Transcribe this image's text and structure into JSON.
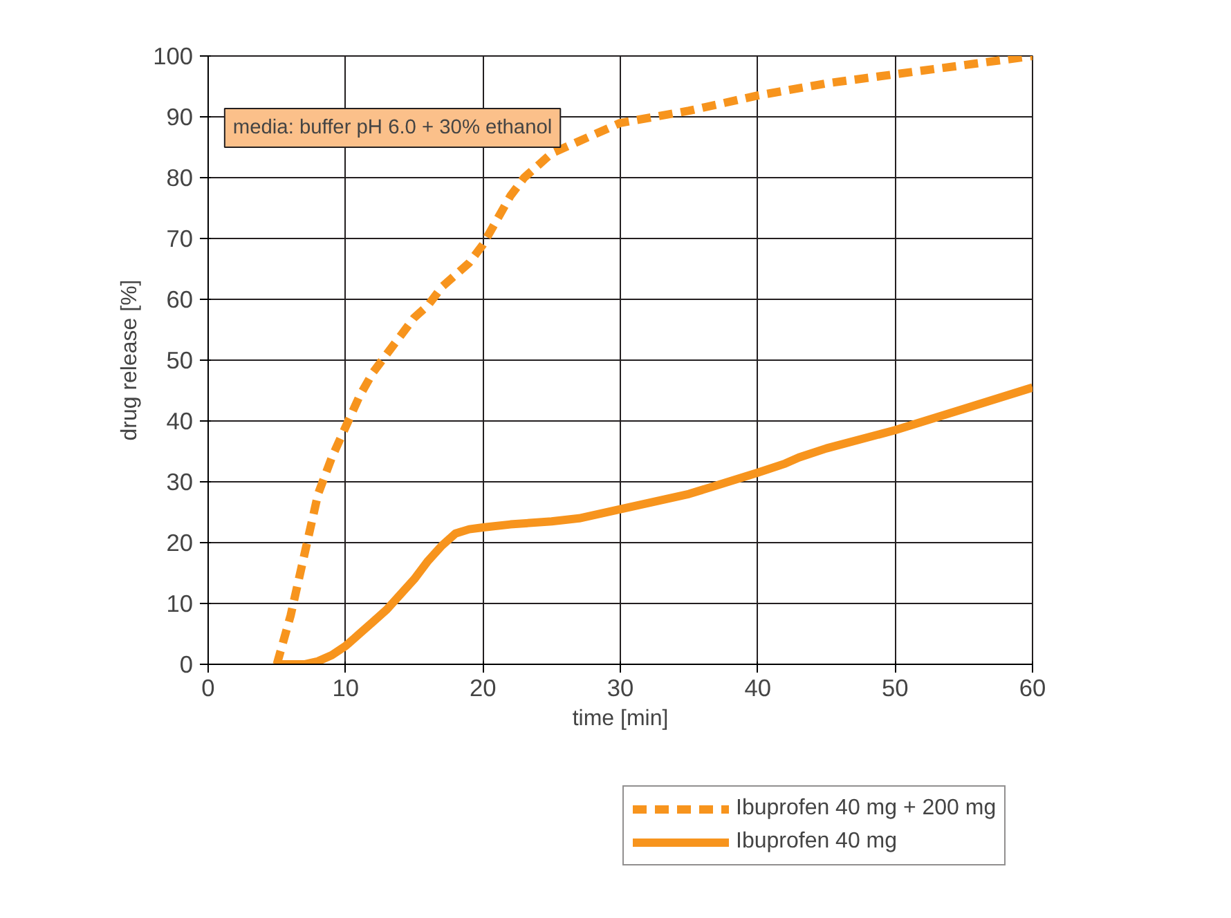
{
  "chart_data": {
    "type": "line",
    "xlabel": "time [min]",
    "ylabel": "drug release [%]",
    "annotations": [
      "media: buffer pH 6.0 + 30% ethanol"
    ],
    "xlim": [
      0,
      60
    ],
    "xticks": [
      0,
      10,
      20,
      30,
      40,
      50,
      60
    ],
    "ylim": [
      0,
      100
    ],
    "yticks": [
      0,
      10,
      20,
      30,
      40,
      50,
      60,
      70,
      80,
      90,
      100
    ],
    "grid": true,
    "legend": "bottom right",
    "marker": "none",
    "series": [
      {
        "name": "Ibuprofen 40 mg + 200 mg",
        "color": "#f7941d",
        "line_style": "dashed",
        "x": [
          5,
          6,
          7,
          8,
          9,
          10,
          11,
          12,
          13,
          14,
          15,
          16,
          17,
          18,
          19,
          20,
          21,
          22,
          23,
          24,
          25,
          27,
          30,
          35,
          40,
          45,
          50,
          55,
          60
        ],
        "values": [
          0,
          8,
          18,
          28,
          34,
          39,
          44,
          48,
          51,
          54,
          57,
          59,
          62,
          64,
          66,
          69,
          73,
          77,
          80,
          82,
          84,
          86,
          89,
          91,
          93.5,
          95.5,
          97,
          98.5,
          100
        ]
      },
      {
        "name": "Ibuprofen 40 mg",
        "color": "#f7941d",
        "line_style": "solid",
        "x": [
          5.3,
          6,
          7,
          8,
          9,
          10,
          11,
          12,
          13,
          14,
          15,
          16,
          17,
          18,
          19,
          20,
          22,
          25,
          27,
          30,
          35,
          40,
          42,
          43,
          45,
          50,
          55,
          60
        ],
        "values": [
          0,
          0,
          0,
          0.5,
          1.5,
          3,
          5,
          7,
          9,
          11.5,
          14,
          17,
          19.5,
          21.5,
          22.2,
          22.5,
          23,
          23.5,
          24,
          25.5,
          28,
          31.5,
          33,
          34,
          35.5,
          38.5,
          42,
          45.5
        ]
      }
    ]
  }
}
